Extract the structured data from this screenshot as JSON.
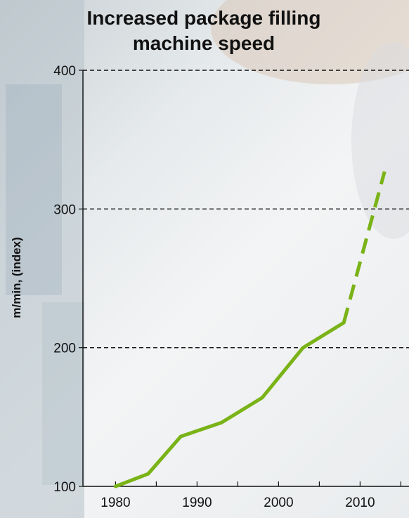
{
  "chart_data": {
    "type": "line",
    "title": "Increased package filling machine speed",
    "xlabel": "",
    "ylabel": "m/min, (index)",
    "x_ticks": [
      "1980",
      "1990",
      "2000",
      "2010"
    ],
    "y_ticks": [
      "100",
      "200",
      "300",
      "400"
    ],
    "xlim": [
      1976,
      2016
    ],
    "ylim": [
      100,
      400
    ],
    "grid": "horizontal dashed at 200, 300, 400",
    "series": [
      {
        "style": "solid",
        "color": "#7ab317",
        "x": [
          1980,
          1984,
          1988,
          1993,
          1998,
          2003,
          2008
        ],
        "y": [
          100,
          109,
          136,
          146,
          164,
          200,
          218
        ]
      },
      {
        "style": "dashed",
        "color": "#7ab317",
        "x": [
          2008,
          2013
        ],
        "y": [
          218,
          327
        ]
      }
    ]
  }
}
